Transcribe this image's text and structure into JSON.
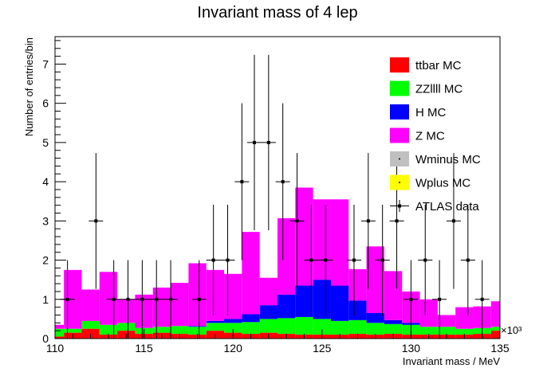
{
  "chart_data": {
    "type": "bar",
    "stacked": true,
    "title": "Invariant mass of 4 lep",
    "xlabel": "Invariant mass / MeV",
    "ylabel": "Number of entries/bin",
    "x_scale_label": "×10³",
    "xlim": [
      110,
      135
    ],
    "ylim": [
      0,
      7.7
    ],
    "x_ticks": [
      110,
      115,
      120,
      125,
      130,
      135
    ],
    "x_tick_labels": [
      "110",
      "115",
      "120",
      "125",
      "130",
      "135"
    ],
    "y_ticks": [
      0,
      1,
      2,
      3,
      4,
      5,
      6,
      7
    ],
    "y_tick_labels": [
      "0",
      "1",
      "2",
      "3",
      "4",
      "5",
      "6",
      "7"
    ],
    "bin_edges": [
      109.5,
      110.5,
      111.5,
      112.5,
      113.5,
      114.5,
      115.5,
      116.5,
      117.5,
      118.5,
      119.5,
      120.5,
      121.5,
      122.5,
      123.5,
      124.5,
      125.5,
      126.5,
      127.5,
      128.5,
      129.5,
      130.5,
      131.5,
      132.5,
      133.5,
      134.5,
      135.5
    ],
    "series": [
      {
        "name": "ttbar MC",
        "color": "#ff0000",
        "values": [
          0.05,
          0.15,
          0.25,
          0.1,
          0.2,
          0.12,
          0.15,
          0.12,
          0.1,
          0.2,
          0.15,
          0.12,
          0.15,
          0.12,
          0.1,
          0.1,
          0.1,
          0.12,
          0.1,
          0.12,
          0.1,
          0.1,
          0.1,
          0.1,
          0.12,
          0.2
        ]
      },
      {
        "name": "ZZllll MC",
        "color": "#00ff00",
        "values": [
          0.2,
          0.1,
          0.2,
          0.25,
          0.2,
          0.15,
          0.15,
          0.2,
          0.2,
          0.2,
          0.25,
          0.3,
          0.35,
          0.4,
          0.45,
          0.4,
          0.35,
          0.35,
          0.3,
          0.25,
          0.25,
          0.2,
          0.2,
          0.15,
          0.15,
          0.1
        ]
      },
      {
        "name": "H MC",
        "color": "#0000ff",
        "values": [
          0,
          0,
          0,
          0,
          0,
          0,
          0,
          0,
          0.02,
          0.05,
          0.1,
          0.2,
          0.35,
          0.6,
          0.8,
          1.0,
          0.9,
          0.5,
          0.25,
          0.1,
          0.05,
          0,
          0,
          0,
          0,
          0
        ]
      },
      {
        "name": "Z MC",
        "color": "#ff00ff",
        "values": [
          0.1,
          1.5,
          0.8,
          1.35,
          0.6,
          0.85,
          1.0,
          1.1,
          1.6,
          1.3,
          1.15,
          2.1,
          0.7,
          1.95,
          2.5,
          2.05,
          2.2,
          0.8,
          1.7,
          1.25,
          0.8,
          0.7,
          0.3,
          0.55,
          0.55,
          0.65
        ]
      },
      {
        "name": "Wminus MC",
        "color": "#c0c0c0",
        "values": [
          0,
          0,
          0,
          0,
          0,
          0,
          0,
          0,
          0,
          0,
          0,
          0,
          0,
          0,
          0,
          0,
          0,
          0,
          0,
          0,
          0,
          0,
          0,
          0,
          0,
          0
        ]
      },
      {
        "name": "Wplus MC",
        "color": "#ffff00",
        "values": [
          0,
          0,
          0,
          0,
          0,
          0,
          0,
          0,
          0,
          0,
          0,
          0,
          0,
          0,
          0,
          0,
          0,
          0,
          0,
          0,
          0,
          0,
          0,
          0,
          0,
          0
        ]
      }
    ],
    "data_points": {
      "name": "ATLAS data",
      "x": [
        110.7,
        112.3,
        113.3,
        114.1,
        114.9,
        115.7,
        116.5,
        118.1,
        118.9,
        119.7,
        120.5,
        121.2,
        122.0,
        122.8,
        123.6,
        124.4,
        125.2,
        126.8,
        127.6,
        128.4,
        129.2,
        130.0,
        130.8,
        131.6,
        132.4,
        133.2,
        134.0
      ],
      "y": [
        1,
        3,
        1,
        1,
        1,
        1,
        1,
        1,
        2,
        2,
        4,
        5,
        5,
        4,
        3,
        2,
        2,
        2,
        3,
        2,
        3,
        1,
        2,
        1,
        3,
        2,
        1
      ]
    },
    "legend": {
      "position": "top-right",
      "entries": [
        "ttbar MC",
        "ZZllll MC",
        "H MC",
        "Z MC",
        "Wminus MC",
        "Wplus MC",
        "ATLAS data"
      ]
    },
    "grid": false
  }
}
